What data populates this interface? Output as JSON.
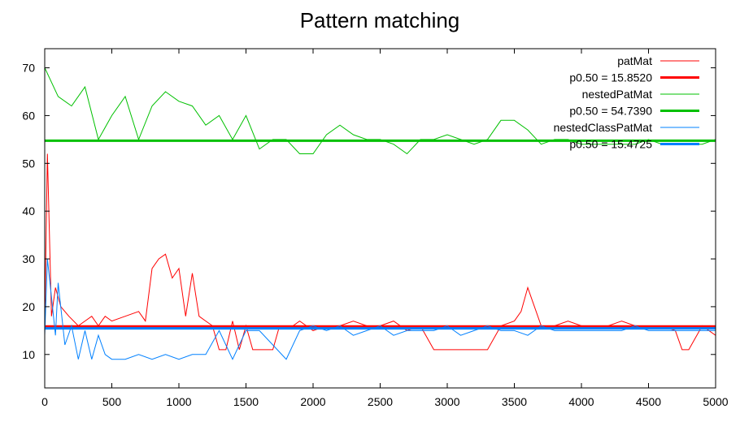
{
  "chart_data": {
    "type": "line",
    "title": "Pattern matching",
    "xlabel": "",
    "ylabel": "",
    "xlim": [
      0,
      5000
    ],
    "ylim": [
      3,
      74
    ],
    "xticks": [
      0,
      500,
      1000,
      1500,
      2000,
      2500,
      3000,
      3500,
      4000,
      4500,
      5000
    ],
    "yticks": [
      10,
      20,
      30,
      40,
      50,
      60,
      70
    ],
    "grid": false,
    "legend_position": "top-right",
    "series": [
      {
        "name": "patMat",
        "color": "#ff0000",
        "x": [
          0,
          20,
          50,
          80,
          120,
          180,
          250,
          300,
          350,
          400,
          450,
          500,
          600,
          700,
          750,
          800,
          850,
          900,
          950,
          1000,
          1050,
          1100,
          1150,
          1200,
          1250,
          1300,
          1350,
          1400,
          1450,
          1500,
          1550,
          1600,
          1650,
          1700,
          1750,
          1800,
          1850,
          1900,
          1950,
          2000,
          2100,
          2200,
          2300,
          2400,
          2500,
          2600,
          2700,
          2800,
          2900,
          3000,
          3100,
          3200,
          3300,
          3400,
          3500,
          3550,
          3600,
          3700,
          3800,
          3900,
          4000,
          4100,
          4200,
          4300,
          4400,
          4500,
          4600,
          4700,
          4750,
          4800,
          4900,
          5000
        ],
        "values": [
          16,
          52,
          18,
          24,
          20,
          18,
          16,
          17,
          18,
          16,
          18,
          17,
          18,
          19,
          17,
          28,
          30,
          31,
          26,
          28,
          18,
          27,
          18,
          17,
          16,
          11,
          11,
          17,
          11,
          16,
          11,
          11,
          11,
          11,
          16,
          16,
          16,
          17,
          16,
          15,
          16,
          16,
          17,
          16,
          16,
          17,
          15,
          16,
          11,
          11,
          11,
          11,
          11,
          16,
          17,
          19,
          24,
          16,
          16,
          17,
          16,
          16,
          16,
          17,
          16,
          16,
          16,
          15,
          11,
          11,
          16,
          14
        ]
      },
      {
        "name": "p0.50 = 15.8520",
        "color": "#ff0000",
        "x": [
          0,
          5000
        ],
        "values": [
          15.852,
          15.852
        ]
      },
      {
        "name": "nestedPatMat",
        "color": "#00c000",
        "x": [
          0,
          100,
          200,
          300,
          400,
          500,
          600,
          700,
          800,
          900,
          1000,
          1100,
          1200,
          1300,
          1400,
          1500,
          1600,
          1700,
          1800,
          1900,
          2000,
          2100,
          2200,
          2300,
          2400,
          2500,
          2600,
          2700,
          2800,
          2900,
          3000,
          3100,
          3200,
          3300,
          3400,
          3500,
          3600,
          3700,
          3800,
          3900,
          4000,
          4100,
          4200,
          4300,
          4400,
          4500,
          4600,
          4700,
          4800,
          4900,
          5000
        ],
        "values": [
          70,
          64,
          62,
          66,
          55,
          60,
          64,
          55,
          62,
          65,
          63,
          62,
          58,
          60,
          55,
          60,
          53,
          55,
          55,
          52,
          52,
          56,
          58,
          56,
          55,
          55,
          54,
          52,
          55,
          55,
          56,
          55,
          54,
          55,
          59,
          59,
          57,
          54,
          55,
          55,
          54,
          54,
          54,
          54,
          54,
          55,
          54,
          54,
          54,
          54,
          55
        ]
      },
      {
        "name": "p0.50 = 54.7390",
        "color": "#00c000",
        "x": [
          0,
          5000
        ],
        "values": [
          54.739,
          54.739
        ]
      },
      {
        "name": "nestedClassPatMat",
        "color": "#0080ff",
        "x": [
          0,
          20,
          50,
          80,
          100,
          150,
          200,
          250,
          300,
          350,
          400,
          450,
          500,
          600,
          700,
          800,
          900,
          1000,
          1100,
          1200,
          1300,
          1400,
          1500,
          1600,
          1700,
          1800,
          1900,
          2000,
          2100,
          2200,
          2300,
          2400,
          2500,
          2600,
          2700,
          2800,
          2900,
          3000,
          3100,
          3200,
          3300,
          3400,
          3500,
          3600,
          3700,
          3800,
          3900,
          4000,
          4100,
          4200,
          4300,
          4400,
          4500,
          4600,
          4700,
          4800,
          4900,
          5000
        ],
        "values": [
          14,
          30,
          22,
          14,
          25,
          12,
          16,
          9,
          15,
          9,
          14,
          10,
          9,
          9,
          10,
          9,
          10,
          9,
          10,
          10,
          15,
          9,
          15,
          15,
          12,
          9,
          15,
          16,
          15,
          16,
          14,
          15,
          16,
          14,
          15,
          15,
          15,
          16,
          14,
          15,
          16,
          15,
          15,
          14,
          16,
          15,
          15,
          15,
          15,
          15,
          15,
          16,
          15,
          15,
          15,
          15,
          15,
          15
        ]
      },
      {
        "name": "p0.50 = 15.4725",
        "color": "#0080ff",
        "x": [
          0,
          5000
        ],
        "values": [
          15.4725,
          15.4725
        ]
      }
    ]
  }
}
